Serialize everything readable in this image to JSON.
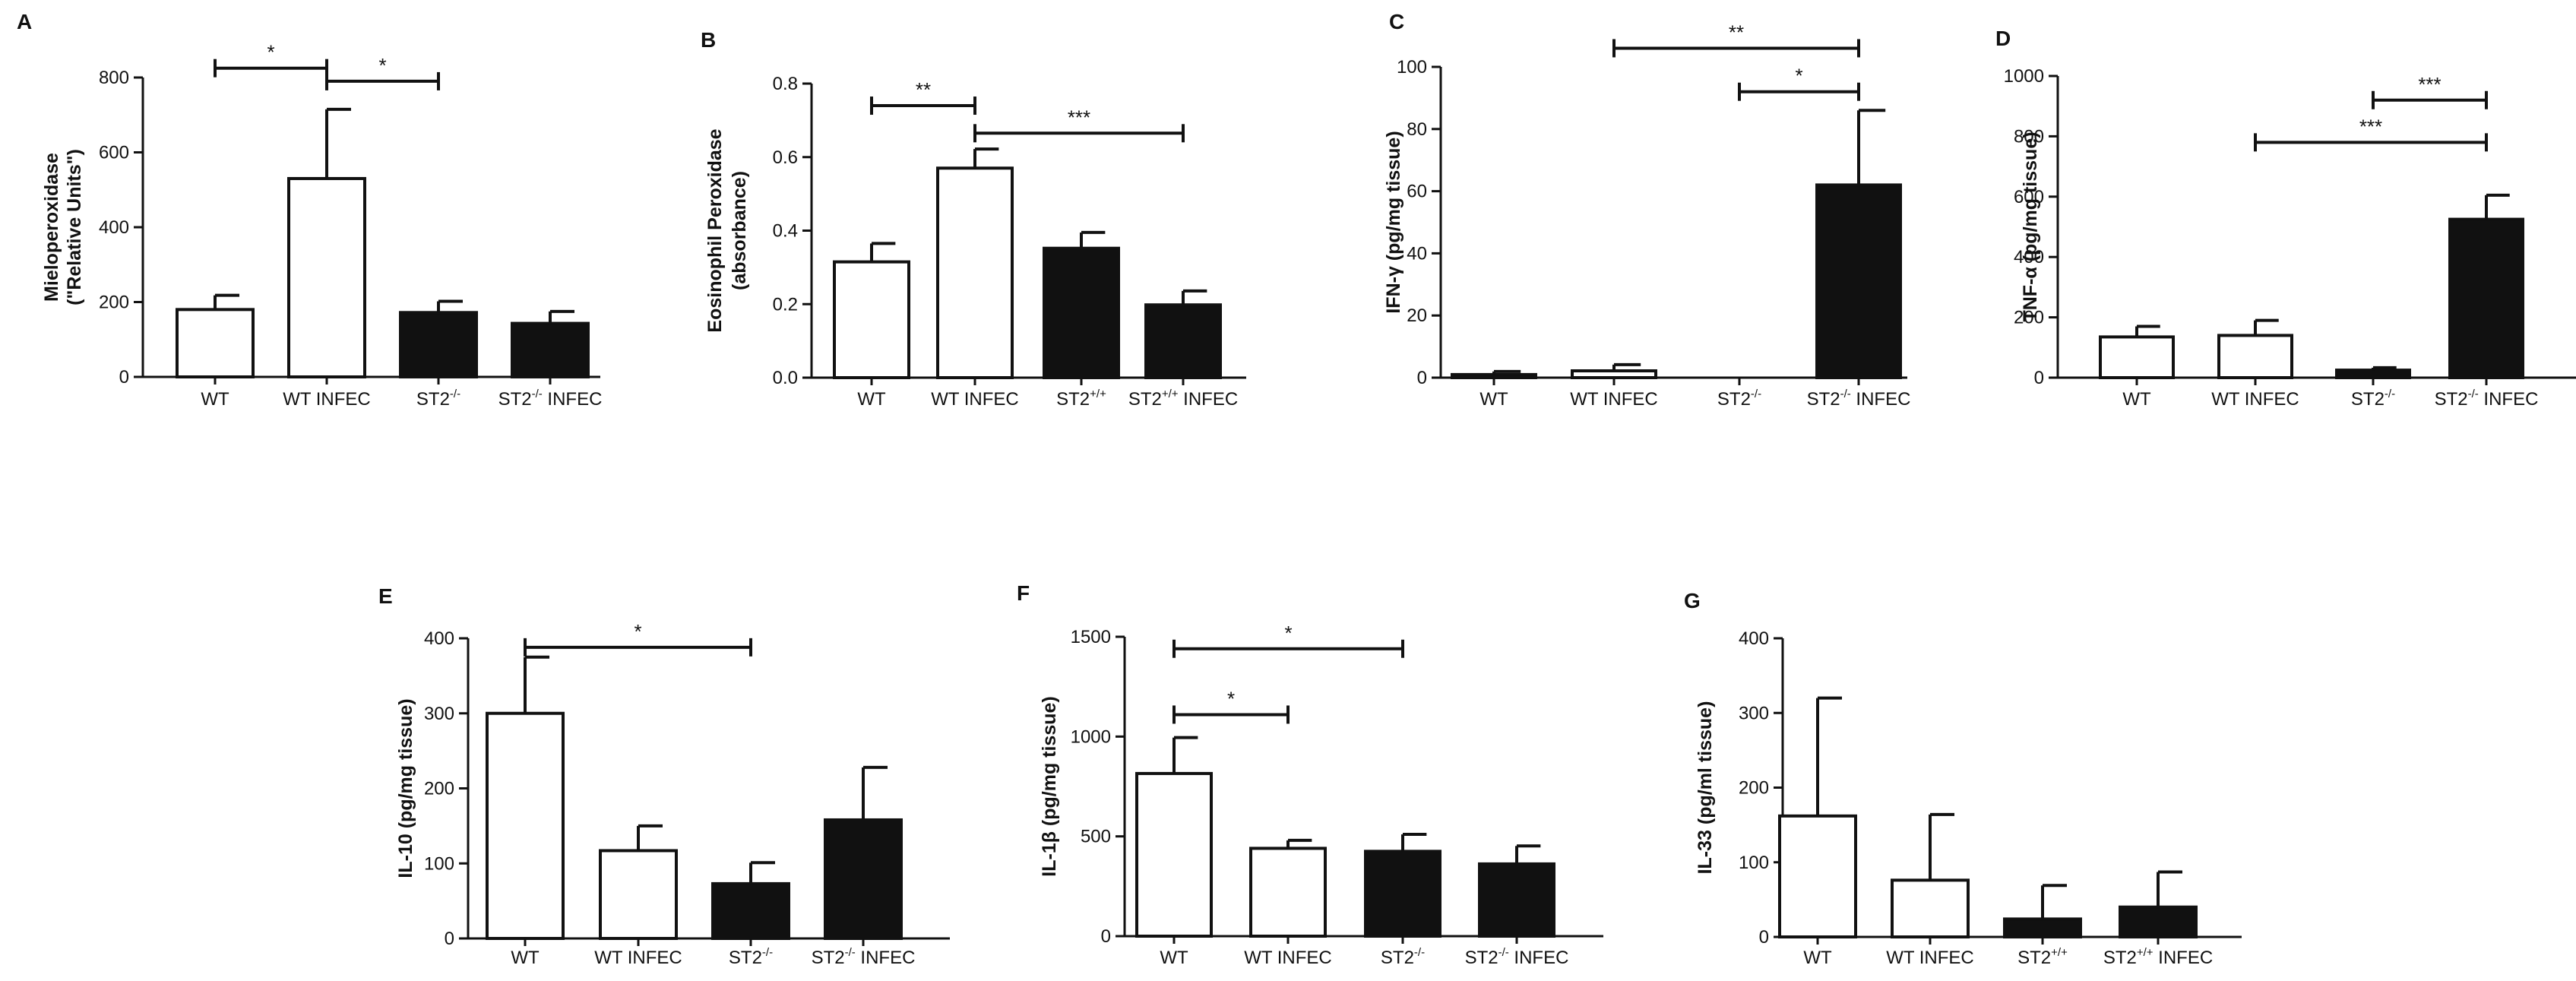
{
  "figure": {
    "colors": {
      "open_bar": "#ffffff",
      "filled_bar": "#111111",
      "stroke": "#111111"
    }
  },
  "chart_data": [
    {
      "type": "bar",
      "panel_letter": "A",
      "ylabel_lines": [
        "Mieloperoxidase",
        "(\"Relative Units\")"
      ],
      "categories": [
        {
          "text": "WT"
        },
        {
          "text": "WT INFEC"
        },
        {
          "text": "ST2",
          "sup": "-/-"
        },
        {
          "text": "ST2",
          "sup": "-/-",
          "after": " INFEC"
        }
      ],
      "values": [
        180,
        530,
        172,
        143
      ],
      "errors": [
        38,
        185,
        30,
        32
      ],
      "fills": [
        "open",
        "open",
        "filled",
        "filled"
      ],
      "ylim": [
        0,
        800
      ],
      "yticks": [
        0,
        200,
        400,
        600,
        800
      ],
      "significance": [
        {
          "from": 0,
          "to": 1,
          "label": "*",
          "y": 825
        },
        {
          "from": 1,
          "to": 2,
          "label": "*",
          "y": 790
        }
      ]
    },
    {
      "type": "bar",
      "panel_letter": "B",
      "ylabel_lines": [
        "Eosinophil Peroxidase",
        "(absorbance)"
      ],
      "categories": [
        {
          "text": "WT"
        },
        {
          "text": "WT INFEC"
        },
        {
          "text": "ST2",
          "sup": "+/+"
        },
        {
          "text": "ST2",
          "sup": "+/+",
          "after": " INFEC"
        }
      ],
      "values": [
        0.315,
        0.57,
        0.352,
        0.198
      ],
      "errors": [
        0.05,
        0.052,
        0.043,
        0.038
      ],
      "fills": [
        "open",
        "open",
        "filled",
        "filled"
      ],
      "ylim": [
        0,
        0.8
      ],
      "yticks": [
        0,
        0.2,
        0.4,
        0.6,
        0.8
      ],
      "significance": [
        {
          "from": 0,
          "to": 1,
          "label": "**",
          "y": 0.74
        },
        {
          "from": 1,
          "to": 3,
          "label": "***",
          "y": 0.665
        }
      ]
    },
    {
      "type": "bar",
      "panel_letter": "C",
      "ylabel_lines": [
        "IFN-γ (pg/mg tissue)"
      ],
      "categories": [
        {
          "text": "WT"
        },
        {
          "text": "WT INFEC"
        },
        {
          "text": "ST2",
          "sup": "-/-"
        },
        {
          "text": "ST2",
          "sup": "-/-",
          "after": " INFEC"
        }
      ],
      "values": [
        1,
        2.2,
        0,
        62
      ],
      "errors": [
        1,
        2,
        0,
        24
      ],
      "fills": [
        "filled",
        "open",
        "filled",
        "filled"
      ],
      "ylim": [
        0,
        100
      ],
      "yticks": [
        0,
        20,
        40,
        60,
        80,
        100
      ],
      "significance": [
        {
          "from": 1,
          "to": 3,
          "label": "**",
          "y": 106
        },
        {
          "from": 2,
          "to": 3,
          "label": "*",
          "y": 92
        }
      ]
    },
    {
      "type": "bar",
      "panel_letter": "D",
      "ylabel_lines": [
        "TNF-α (pg/mg tissue)"
      ],
      "categories": [
        {
          "text": "WT"
        },
        {
          "text": "WT INFEC"
        },
        {
          "text": "ST2",
          "sup": "-/-"
        },
        {
          "text": "ST2",
          "sup": "-/-",
          "after": " INFEC"
        }
      ],
      "values": [
        135,
        140,
        25,
        525
      ],
      "errors": [
        35,
        50,
        8,
        80
      ],
      "fills": [
        "open",
        "open",
        "filled",
        "filled"
      ],
      "ylim": [
        0,
        1000
      ],
      "yticks": [
        0,
        200,
        400,
        600,
        800,
        1000
      ],
      "significance": [
        {
          "from": 2,
          "to": 3,
          "label": "***",
          "y": 920
        },
        {
          "from": 1,
          "to": 3,
          "label": "***",
          "y": 780
        }
      ]
    },
    {
      "type": "bar",
      "panel_letter": "E",
      "ylabel_lines": [
        "IL-10 (pg/mg tissue)"
      ],
      "categories": [
        {
          "text": "WT"
        },
        {
          "text": "WT INFEC"
        },
        {
          "text": "ST2",
          "sup": "-/-"
        },
        {
          "text": "ST2",
          "sup": "-/-",
          "after": " INFEC"
        }
      ],
      "values": [
        300,
        117,
        73,
        158
      ],
      "errors": [
        75,
        33,
        28,
        70
      ],
      "fills": [
        "open",
        "open",
        "filled",
        "filled"
      ],
      "ylim": [
        0,
        400
      ],
      "yticks": [
        0,
        100,
        200,
        300,
        400
      ],
      "significance": [
        {
          "from": 0,
          "to": 2,
          "label": "*",
          "y": 388
        }
      ]
    },
    {
      "type": "bar",
      "panel_letter": "F",
      "ylabel_lines": [
        "IL-1β (pg/mg tissue)"
      ],
      "categories": [
        {
          "text": "WT"
        },
        {
          "text": "WT INFEC"
        },
        {
          "text": "ST2",
          "sup": "-/-"
        },
        {
          "text": "ST2",
          "sup": "-/-",
          "after": " INFEC"
        }
      ],
      "values": [
        815,
        440,
        425,
        362
      ],
      "errors": [
        180,
        40,
        85,
        90
      ],
      "fills": [
        "open",
        "open",
        "filled",
        "filled"
      ],
      "ylim": [
        0,
        1500
      ],
      "yticks": [
        0,
        500,
        1000,
        1500
      ],
      "significance": [
        {
          "from": 0,
          "to": 2,
          "label": "*",
          "y": 1440
        },
        {
          "from": 0,
          "to": 1,
          "label": "*",
          "y": 1110
        }
      ]
    },
    {
      "type": "bar",
      "panel_letter": "G",
      "ylabel_lines": [
        "IL-33 (pg/ml tissue)"
      ],
      "categories": [
        {
          "text": "WT"
        },
        {
          "text": "WT INFEC"
        },
        {
          "text": "ST2",
          "sup": "+/+"
        },
        {
          "text": "ST2",
          "sup": "+/+",
          "after": " INFEC"
        }
      ],
      "values": [
        162,
        76,
        24,
        40
      ],
      "errors": [
        158,
        88,
        45,
        47
      ],
      "fills": [
        "open",
        "open",
        "filled",
        "filled"
      ],
      "ylim": [
        0,
        400
      ],
      "yticks": [
        0,
        100,
        200,
        300,
        400
      ],
      "significance": []
    }
  ]
}
